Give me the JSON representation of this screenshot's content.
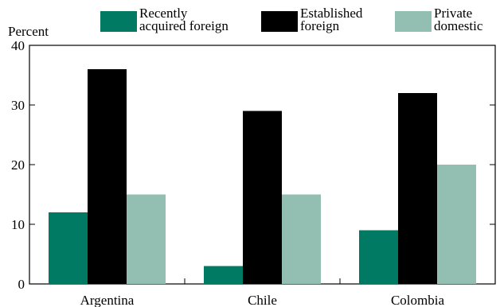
{
  "chart_data": {
    "type": "bar",
    "title": "",
    "xlabel": "",
    "ylabel": "Percent",
    "ylim": [
      0,
      40
    ],
    "yticks": [
      0,
      10,
      20,
      30,
      40
    ],
    "categories": [
      "Argentina",
      "Chile",
      "Colombia"
    ],
    "series": [
      {
        "name_lines": [
          "Recently",
          "acquired foreign"
        ],
        "name": "Recently acquired foreign",
        "color": "#007a63",
        "values": [
          12,
          3,
          9
        ]
      },
      {
        "name_lines": [
          "Established",
          "foreign"
        ],
        "name": "Established foreign",
        "color": "#000000",
        "values": [
          36,
          29,
          32
        ]
      },
      {
        "name_lines": [
          "Private",
          "domestic"
        ],
        "name": "Private domestic",
        "color": "#93bfb3",
        "values": [
          15,
          15,
          20
        ]
      }
    ],
    "legend_position": "top",
    "grid": false
  }
}
